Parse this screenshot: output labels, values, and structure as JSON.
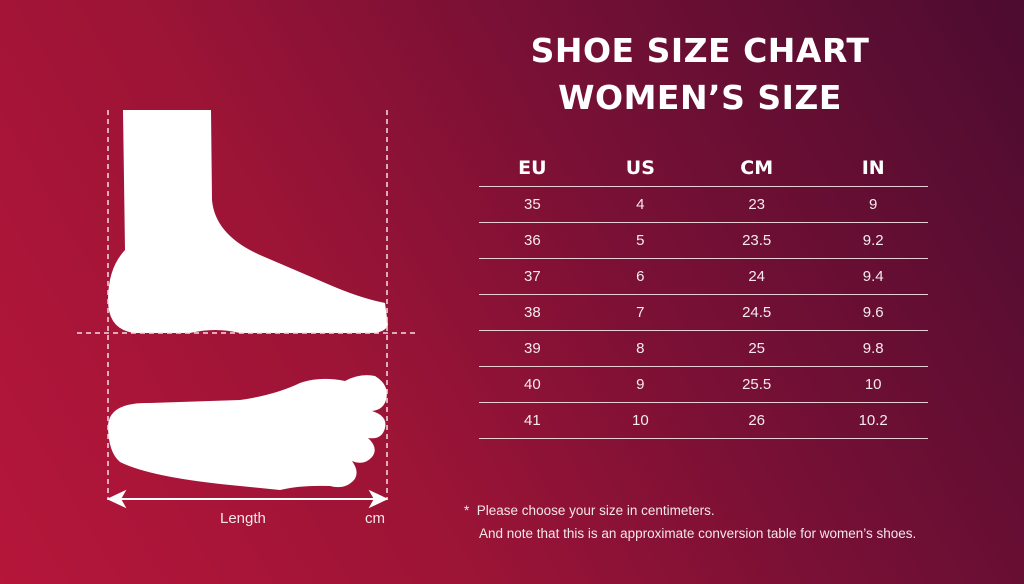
{
  "title_line1": "SHOE SIZE CHART",
  "title_line2": "WOMEN’S SIZE",
  "diagram": {
    "length_label": "Length",
    "unit_label": "cm"
  },
  "table": {
    "headers": [
      "EU",
      "US",
      "CM",
      "IN"
    ],
    "rows": [
      [
        "35",
        "4",
        "23",
        "9"
      ],
      [
        "36",
        "5",
        "23.5",
        "9.2"
      ],
      [
        "37",
        "6",
        "24",
        "9.4"
      ],
      [
        "38",
        "7",
        "24.5",
        "9.6"
      ],
      [
        "39",
        "8",
        "25",
        "9.8"
      ],
      [
        "40",
        "9",
        "25.5",
        "10"
      ],
      [
        "41",
        "10",
        "26",
        "10.2"
      ]
    ]
  },
  "notes": {
    "asterisk": "*",
    "line1": "Please choose your size in centimeters.",
    "line2": "And note that this is an approximate conversion table for women’s shoes."
  },
  "colors": {
    "bg_light": "#b5163a",
    "bg_dark": "#4c0c30",
    "foreground": "#ffffff"
  }
}
